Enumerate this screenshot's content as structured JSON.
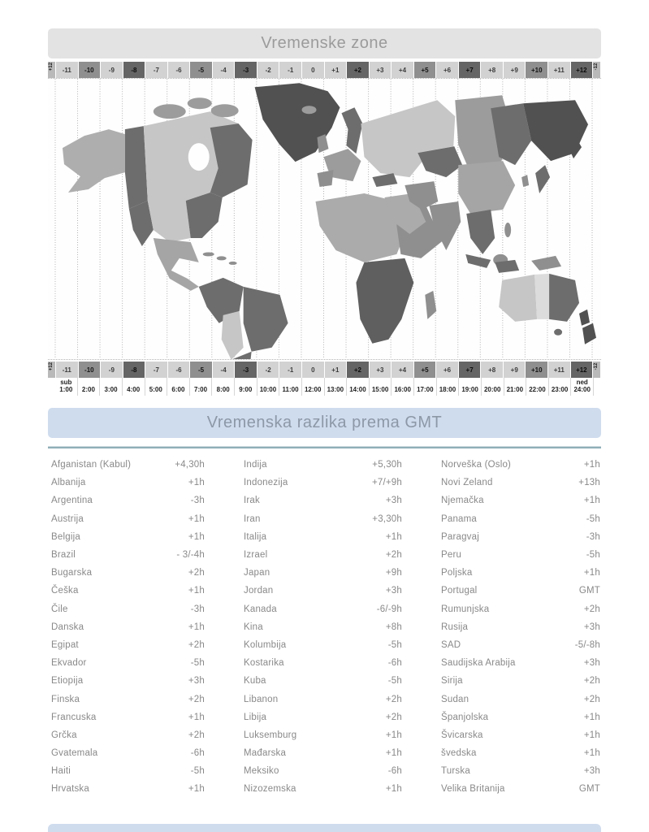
{
  "page": {
    "section1_title": "Vremenske zone",
    "section2_title": "Vremenska razlika prema GMT"
  },
  "colors": {
    "header_gray_bg": "#e3e3e3",
    "header_blue_bg": "#cfdcee",
    "rule_teal": "#8fafb6",
    "zone_light": "#d2d2d2",
    "zone_mid": "#8f8f8f",
    "zone_dark": "#656565"
  },
  "timezone_strip": {
    "left_edge_label": "+12",
    "right_edge_label": "-12",
    "zones": [
      {
        "label": "-11",
        "shade": "light"
      },
      {
        "label": "-10",
        "shade": "mid"
      },
      {
        "label": "-9",
        "shade": "light"
      },
      {
        "label": "-8",
        "shade": "dark"
      },
      {
        "label": "-7",
        "shade": "light"
      },
      {
        "label": "-6",
        "shade": "light"
      },
      {
        "label": "-5",
        "shade": "mid"
      },
      {
        "label": "-4",
        "shade": "light"
      },
      {
        "label": "-3",
        "shade": "dark"
      },
      {
        "label": "-2",
        "shade": "light"
      },
      {
        "label": "-1",
        "shade": "light"
      },
      {
        "label": "0",
        "shade": "light"
      },
      {
        "label": "+1",
        "shade": "light"
      },
      {
        "label": "+2",
        "shade": "dark"
      },
      {
        "label": "+3",
        "shade": "light"
      },
      {
        "label": "+4",
        "shade": "light"
      },
      {
        "label": "+5",
        "shade": "mid"
      },
      {
        "label": "+6",
        "shade": "light"
      },
      {
        "label": "+7",
        "shade": "dark"
      },
      {
        "label": "+8",
        "shade": "light"
      },
      {
        "label": "+9",
        "shade": "light"
      },
      {
        "label": "+10",
        "shade": "mid"
      },
      {
        "label": "+11",
        "shade": "light"
      },
      {
        "label": "+12",
        "shade": "dark"
      }
    ],
    "hours": [
      {
        "day": "sub",
        "time": "1:00"
      },
      {
        "day": "",
        "time": "2:00"
      },
      {
        "day": "",
        "time": "3:00"
      },
      {
        "day": "",
        "time": "4:00"
      },
      {
        "day": "",
        "time": "5:00"
      },
      {
        "day": "",
        "time": "6:00"
      },
      {
        "day": "",
        "time": "7:00"
      },
      {
        "day": "",
        "time": "8:00"
      },
      {
        "day": "",
        "time": "9:00"
      },
      {
        "day": "",
        "time": "10:00"
      },
      {
        "day": "",
        "time": "11:00"
      },
      {
        "day": "",
        "time": "12:00"
      },
      {
        "day": "",
        "time": "13:00"
      },
      {
        "day": "",
        "time": "14:00"
      },
      {
        "day": "",
        "time": "15:00"
      },
      {
        "day": "",
        "time": "16:00"
      },
      {
        "day": "",
        "time": "17:00"
      },
      {
        "day": "",
        "time": "18:00"
      },
      {
        "day": "",
        "time": "19:00"
      },
      {
        "day": "",
        "time": "20:00"
      },
      {
        "day": "",
        "time": "21:00"
      },
      {
        "day": "",
        "time": "22:00"
      },
      {
        "day": "",
        "time": "23:00"
      },
      {
        "day": "ned",
        "time": "24:00"
      }
    ]
  },
  "gmt_table": {
    "columns": [
      [
        {
          "country": "Afganistan (Kabul)",
          "offset": "+4,30h"
        },
        {
          "country": "Albanija",
          "offset": "+1h"
        },
        {
          "country": "Argentina",
          "offset": "-3h"
        },
        {
          "country": "Austrija",
          "offset": "+1h"
        },
        {
          "country": "Belgija",
          "offset": "+1h"
        },
        {
          "country": "Brazil",
          "offset": "- 3/-4h"
        },
        {
          "country": "Bugarska",
          "offset": "+2h"
        },
        {
          "country": "Češka",
          "offset": "+1h"
        },
        {
          "country": "Čile",
          "offset": "-3h"
        },
        {
          "country": "Danska",
          "offset": "+1h"
        },
        {
          "country": "Egipat",
          "offset": "+2h"
        },
        {
          "country": "Ekvador",
          "offset": "-5h"
        },
        {
          "country": "Etiopija",
          "offset": "+3h"
        },
        {
          "country": "Finska",
          "offset": "+2h"
        },
        {
          "country": "Francuska",
          "offset": "+1h"
        },
        {
          "country": "Grčka",
          "offset": "+2h"
        },
        {
          "country": "Gvatemala",
          "offset": "-6h"
        },
        {
          "country": "Haiti",
          "offset": "-5h"
        },
        {
          "country": "Hrvatska",
          "offset": "+1h"
        }
      ],
      [
        {
          "country": "Indija",
          "offset": "+5,30h"
        },
        {
          "country": "Indonezija",
          "offset": "+7/+9h"
        },
        {
          "country": "Irak",
          "offset": "+3h"
        },
        {
          "country": "Iran",
          "offset": "+3,30h"
        },
        {
          "country": "Italija",
          "offset": "+1h"
        },
        {
          "country": "Izrael",
          "offset": "+2h"
        },
        {
          "country": "Japan",
          "offset": "+9h"
        },
        {
          "country": "Jordan",
          "offset": "+3h"
        },
        {
          "country": "Kanada",
          "offset": "-6/-9h"
        },
        {
          "country": "Kina",
          "offset": "+8h"
        },
        {
          "country": "Kolumbija",
          "offset": "-5h"
        },
        {
          "country": "Kostarika",
          "offset": "-6h"
        },
        {
          "country": "Kuba",
          "offset": "-5h"
        },
        {
          "country": "Libanon",
          "offset": "+2h"
        },
        {
          "country": "Libija",
          "offset": "+2h"
        },
        {
          "country": "Luksemburg",
          "offset": "+1h"
        },
        {
          "country": "Mađarska",
          "offset": "+1h"
        },
        {
          "country": "Meksiko",
          "offset": "-6h"
        },
        {
          "country": "Nizozemska",
          "offset": "+1h"
        }
      ],
      [
        {
          "country": "Norveška (Oslo)",
          "offset": "+1h"
        },
        {
          "country": "Novi Zeland",
          "offset": "+13h"
        },
        {
          "country": "Njemačka",
          "offset": "+1h"
        },
        {
          "country": "Panama",
          "offset": "-5h"
        },
        {
          "country": "Paragvaj",
          "offset": "-3h"
        },
        {
          "country": "Peru",
          "offset": "-5h"
        },
        {
          "country": "Poljska",
          "offset": "+1h"
        },
        {
          "country": "Portugal",
          "offset": "GMT"
        },
        {
          "country": "Rumunjska",
          "offset": "+2h"
        },
        {
          "country": "Rusija",
          "offset": "+3h"
        },
        {
          "country": "SAD",
          "offset": "-5/-8h"
        },
        {
          "country": "Saudijska Arabija",
          "offset": "+3h"
        },
        {
          "country": "Sirija",
          "offset": "+2h"
        },
        {
          "country": "Sudan",
          "offset": "+2h"
        },
        {
          "country": "Španjolska",
          "offset": "+1h"
        },
        {
          "country": "Švicarska",
          "offset": "+1h"
        },
        {
          "country": "švedska",
          "offset": "+1h"
        },
        {
          "country": "Turska",
          "offset": "+3h"
        },
        {
          "country": "Velika Britanija",
          "offset": "GMT"
        }
      ]
    ]
  }
}
